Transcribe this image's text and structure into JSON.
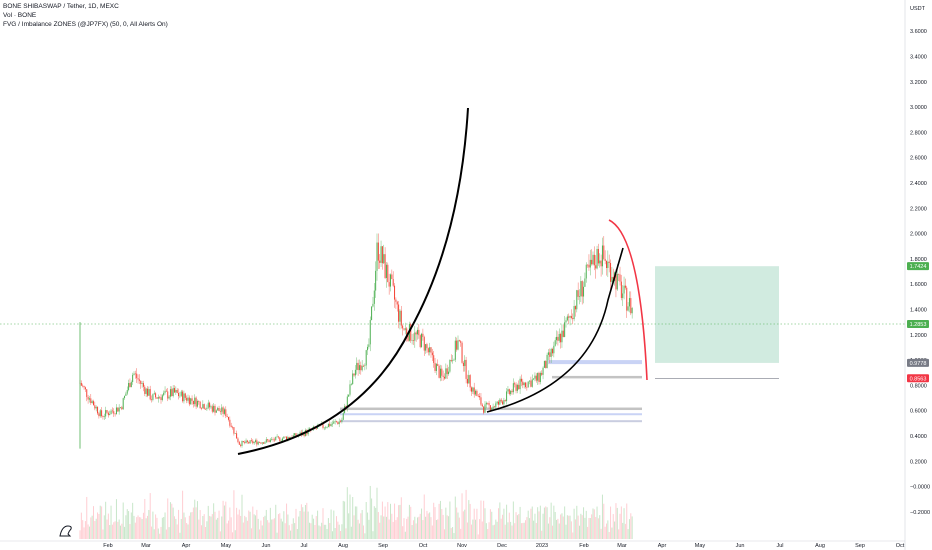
{
  "header": {
    "symbol_line": "BONE SHIBASWAP / Tether, 1D, MEXC",
    "volume_line": "Vol · BONE",
    "indicator_line": "FVG / Imbalance ZONES (@JP7FX) (50, 0, All Alerts On)"
  },
  "axis": {
    "currency": "USDT",
    "y_ticks": [
      "3.6000",
      "3.4000",
      "3.2000",
      "3.0000",
      "2.8000",
      "2.6000",
      "2.4000",
      "2.2000",
      "2.0000",
      "1.8000",
      "1.6000",
      "1.4000",
      "1.2000",
      "1.0000",
      "0.8000",
      "0.6000",
      "0.4000",
      "0.2000",
      "−0.0000",
      "−0.2000"
    ],
    "x_ticks": [
      "Feb",
      "Mar",
      "Apr",
      "May",
      "Jun",
      "Jul",
      "Aug",
      "Sep",
      "Oct",
      "Nov",
      "Dec",
      "2023",
      "Feb",
      "Mar",
      "Apr",
      "May",
      "Jun",
      "Jul",
      "Aug",
      "Sep",
      "Oct"
    ]
  },
  "price_badges": [
    {
      "label": "1.7424",
      "color": "#4caf50"
    },
    {
      "label": "1.2853",
      "color": "#4caf50"
    },
    {
      "label": "0.9778",
      "color": "#787b86"
    },
    {
      "label": "0.8563",
      "color": "#f23645"
    }
  ],
  "colors": {
    "up": "#26a69a",
    "down": "#ef5350",
    "candle_up": "#4caf50",
    "candle_down": "#f44336",
    "profit_zone": "#d1ebe0",
    "loss_zone": "#fbd2d4",
    "fvg_zone": "#c9d3f5",
    "curve_black": "#000000",
    "curve_red": "#f23645"
  },
  "chart_data": {
    "type": "candlestick",
    "symbol": "BONE SHIBASWAP / Tether",
    "timeframe": "1D",
    "exchange": "MEXC",
    "ylim": [
      -0.25,
      3.75
    ],
    "y_scale": "linear",
    "x_range": [
      "2022-01",
      "2023-10"
    ],
    "close_path": [
      {
        "t": "2022-01-20",
        "v": 0.82
      },
      {
        "t": "2022-02-05",
        "v": 0.56
      },
      {
        "t": "2022-02-20",
        "v": 0.63
      },
      {
        "t": "2022-03-01",
        "v": 0.9
      },
      {
        "t": "2022-03-15",
        "v": 0.7
      },
      {
        "t": "2022-04-01",
        "v": 0.74
      },
      {
        "t": "2022-04-20",
        "v": 0.66
      },
      {
        "t": "2022-05-10",
        "v": 0.58
      },
      {
        "t": "2022-05-20",
        "v": 0.34
      },
      {
        "t": "2022-06-10",
        "v": 0.36
      },
      {
        "t": "2022-07-01",
        "v": 0.4
      },
      {
        "t": "2022-07-20",
        "v": 0.47
      },
      {
        "t": "2022-08-05",
        "v": 0.52
      },
      {
        "t": "2022-08-15",
        "v": 0.92
      },
      {
        "t": "2022-08-25",
        "v": 1.05
      },
      {
        "t": "2022-09-01",
        "v": 1.9
      },
      {
        "t": "2022-09-10",
        "v": 1.62
      },
      {
        "t": "2022-09-20",
        "v": 1.25
      },
      {
        "t": "2022-10-05",
        "v": 1.15
      },
      {
        "t": "2022-10-20",
        "v": 0.85
      },
      {
        "t": "2022-11-01",
        "v": 1.15
      },
      {
        "t": "2022-11-08",
        "v": 0.85
      },
      {
        "t": "2022-11-20",
        "v": 0.62
      },
      {
        "t": "2022-12-01",
        "v": 0.65
      },
      {
        "t": "2022-12-15",
        "v": 0.8
      },
      {
        "t": "2022-12-31",
        "v": 0.85
      },
      {
        "t": "2023-01-20",
        "v": 1.25
      },
      {
        "t": "2023-02-05",
        "v": 1.65
      },
      {
        "t": "2023-02-15",
        "v": 1.85
      },
      {
        "t": "2023-02-25",
        "v": 1.7
      },
      {
        "t": "2023-03-05",
        "v": 1.52
      },
      {
        "t": "2023-03-12",
        "v": 1.4
      }
    ],
    "zones": {
      "profit": {
        "from": 0.9778,
        "to": 1.7424
      },
      "loss": {
        "from": 0.8563,
        "to": 0.9778
      }
    },
    "current_price": 1.2853
  }
}
